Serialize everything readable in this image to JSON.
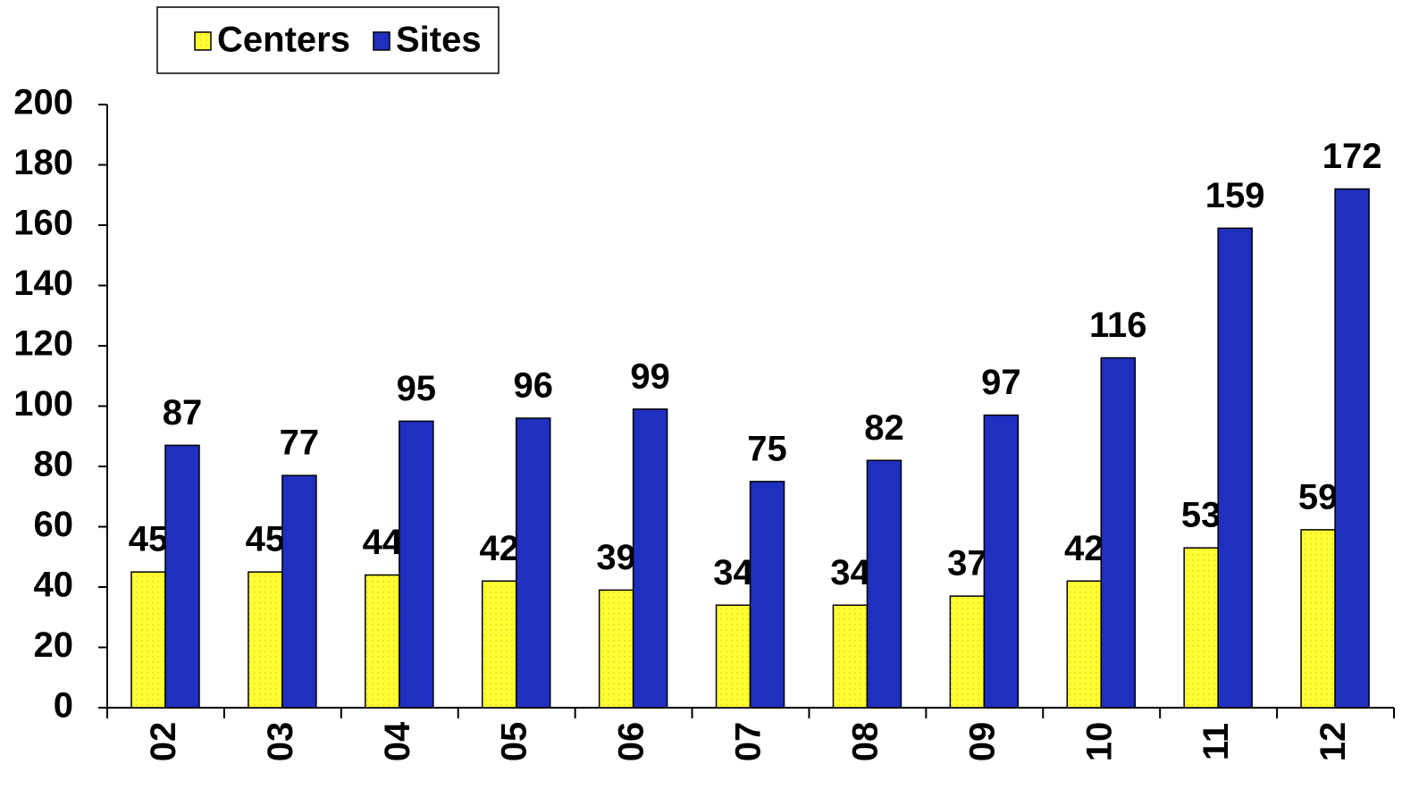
{
  "chart_data": {
    "type": "bar",
    "categories": [
      "02",
      "03",
      "04",
      "05",
      "06",
      "07",
      "08",
      "09",
      "10",
      "11",
      "12"
    ],
    "series": [
      {
        "name": "Centers",
        "color": "#ffff33",
        "values": [
          45,
          45,
          44,
          42,
          39,
          34,
          34,
          37,
          42,
          53,
          59
        ]
      },
      {
        "name": "Sites",
        "color": "#1f2fbf",
        "values": [
          87,
          77,
          95,
          96,
          99,
          75,
          82,
          97,
          116,
          159,
          172
        ]
      }
    ],
    "ylim": [
      0,
      200
    ],
    "yticks": [
      0,
      20,
      40,
      60,
      80,
      100,
      120,
      140,
      160,
      180,
      200
    ]
  }
}
